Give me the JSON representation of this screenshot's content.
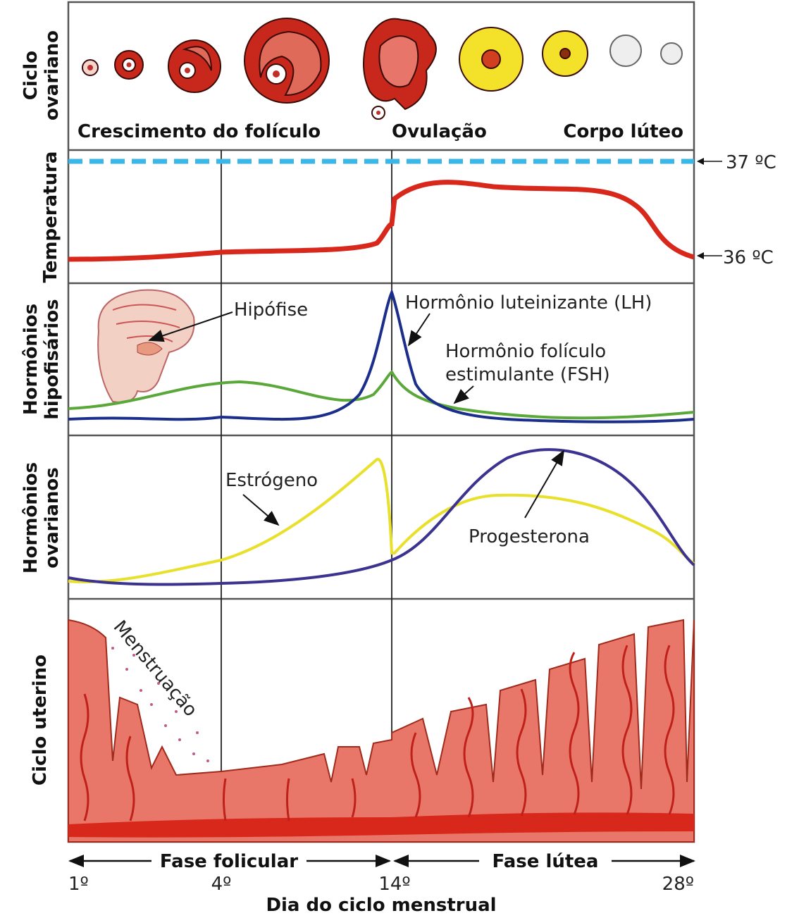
{
  "rows": [
    {
      "label": [
        "Ciclo",
        "ovariano"
      ]
    },
    {
      "label": [
        "Temperatura"
      ]
    },
    {
      "label": [
        "Hormônios",
        "hipofisários"
      ]
    },
    {
      "label": [
        "Hormônios",
        "ovarianos"
      ]
    },
    {
      "label": [
        "Ciclo uterino"
      ]
    }
  ],
  "ovarian_stages": [
    "Crescimento do folículo",
    "Ovulação",
    "Corpo lúteo"
  ],
  "temperature_marks": [
    "37 ºC",
    "36 ºC"
  ],
  "annotations": {
    "pituitary": "Hipófise",
    "lh": "Hormônio luteinizante (LH)",
    "fsh": [
      "Hormônio folículo",
      "estimulante (FSH)"
    ],
    "estrogen": "Estrógeno",
    "progesterone": "Progesterona",
    "menstruation": "Menstruação"
  },
  "phases": [
    "Fase folicular",
    "Fase lútea"
  ],
  "days": [
    "1º",
    "4º",
    "14º",
    "28º"
  ],
  "axis_title": "Dia do ciclo menstrual"
}
